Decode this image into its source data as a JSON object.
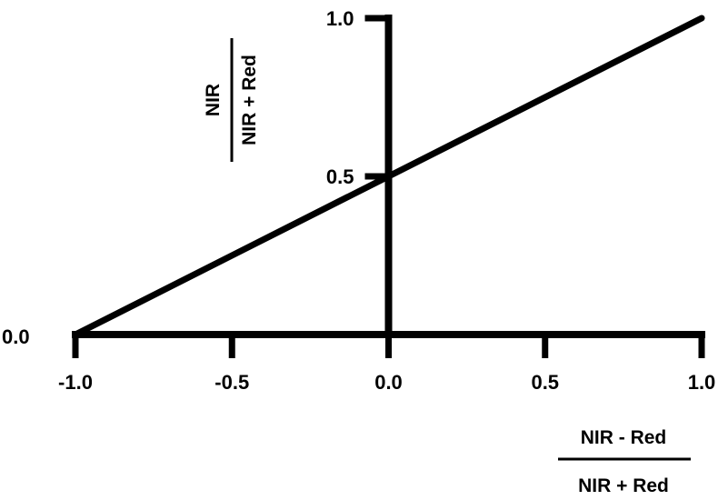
{
  "chart_data": {
    "type": "line",
    "title": "",
    "xlabel": {
      "numerator": "NIR - Red",
      "denominator": "NIR + Red"
    },
    "ylabel": {
      "numerator": "NIR",
      "denominator": "NIR + Red"
    },
    "xlim": [
      -1.0,
      1.0
    ],
    "ylim": [
      0.0,
      1.0
    ],
    "x_ticks": [
      -1.0,
      -0.5,
      0.0,
      0.5,
      1.0
    ],
    "x_tick_labels": [
      "-1.0",
      "-0.5",
      "0.0",
      "0.5",
      "1.0"
    ],
    "y_ticks": [
      0.0,
      0.5,
      1.0
    ],
    "y_tick_labels": [
      "0.0",
      "0.5",
      "1.0"
    ],
    "series": [
      {
        "x": [
          -1.0,
          1.0
        ],
        "y": [
          0.0,
          1.0
        ]
      }
    ],
    "grid": false,
    "legend": "none",
    "colors": {
      "line": "#000000",
      "axis": "#000000",
      "background": "#ffffff"
    }
  }
}
